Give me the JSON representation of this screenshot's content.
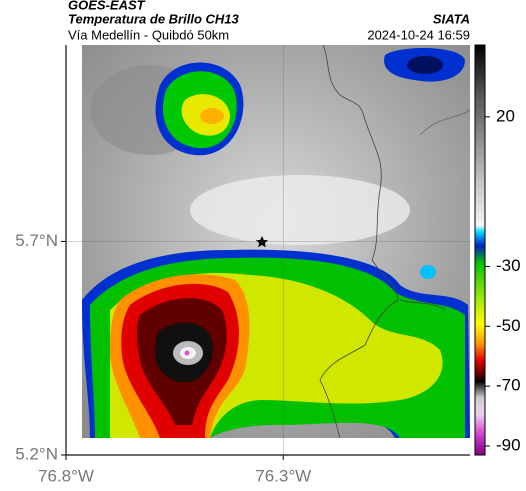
{
  "chart_data": {
    "type": "map",
    "title": "GOES-EAST",
    "subtitle": "Temperatura de Brillo CH13",
    "region": "Vía Medellín - Quibdó 50km",
    "source": "SIATA",
    "timestamp": "2024-10-24 16:59",
    "xlim": [
      -76.8,
      -75.87
    ],
    "ylim": [
      5.2,
      6.16
    ],
    "xticks": [
      {
        "value": -76.8,
        "label": "76.8°W"
      },
      {
        "value": -76.3,
        "label": "76.3°W"
      }
    ],
    "yticks": [
      {
        "value": 5.7,
        "label": "5.7°N"
      },
      {
        "value": 5.2,
        "label": "5.2°N"
      }
    ],
    "grid": true,
    "colorbar": {
      "lim": [
        -93,
        44
      ],
      "ticks": [
        20,
        -30,
        -50,
        -70,
        -90
      ]
    }
  }
}
